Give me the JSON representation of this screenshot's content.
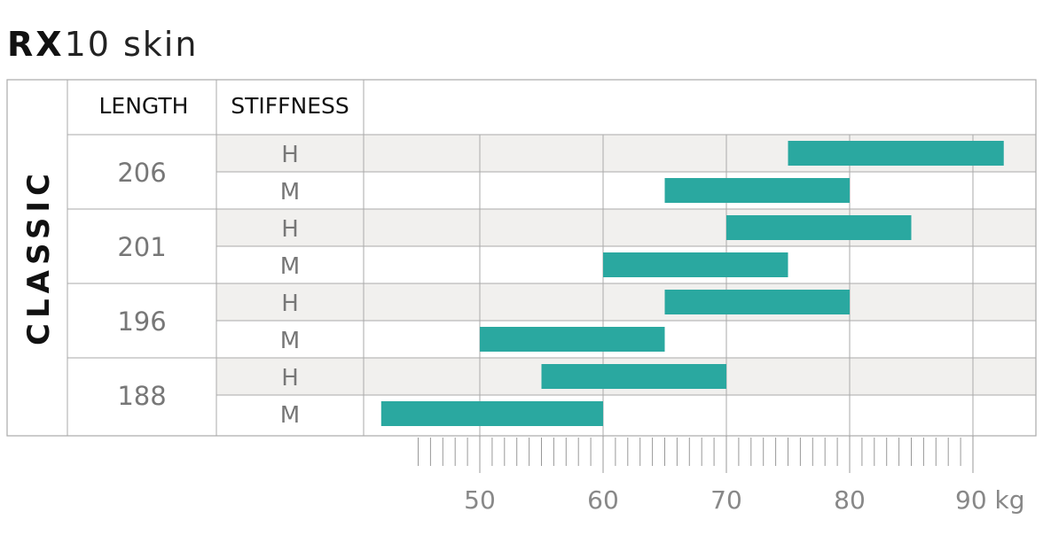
{
  "title": {
    "bold": "RX",
    "light": "10  skin"
  },
  "headers": {
    "length": "LENGTH",
    "stiffness": "STIFFNESS"
  },
  "category": "CLASSIC",
  "colors": {
    "bar": "#2aa8a0",
    "shade": "#f1f0ee",
    "grid": "#aaaaaa"
  },
  "chart_data": {
    "type": "bar",
    "orientation": "horizontal-range",
    "unit": "kg",
    "x_ticks": [
      50,
      60,
      70,
      80,
      90
    ],
    "x_tick_labels": [
      "50",
      "60",
      "70",
      "80",
      "90 kg"
    ],
    "xlim": [
      40,
      95
    ],
    "groups": [
      {
        "length": "206",
        "rows": [
          {
            "stiffness": "H",
            "from": 75,
            "to": 92.5
          },
          {
            "stiffness": "M",
            "from": 65,
            "to": 80
          }
        ]
      },
      {
        "length": "201",
        "rows": [
          {
            "stiffness": "H",
            "from": 70,
            "to": 85
          },
          {
            "stiffness": "M",
            "from": 60,
            "to": 75
          }
        ]
      },
      {
        "length": "196",
        "rows": [
          {
            "stiffness": "H",
            "from": 65,
            "to": 80
          },
          {
            "stiffness": "M",
            "from": 50,
            "to": 65
          }
        ]
      },
      {
        "length": "188",
        "rows": [
          {
            "stiffness": "H",
            "from": 55,
            "to": 70
          },
          {
            "stiffness": "M",
            "from": 42,
            "to": 60
          }
        ]
      }
    ]
  }
}
